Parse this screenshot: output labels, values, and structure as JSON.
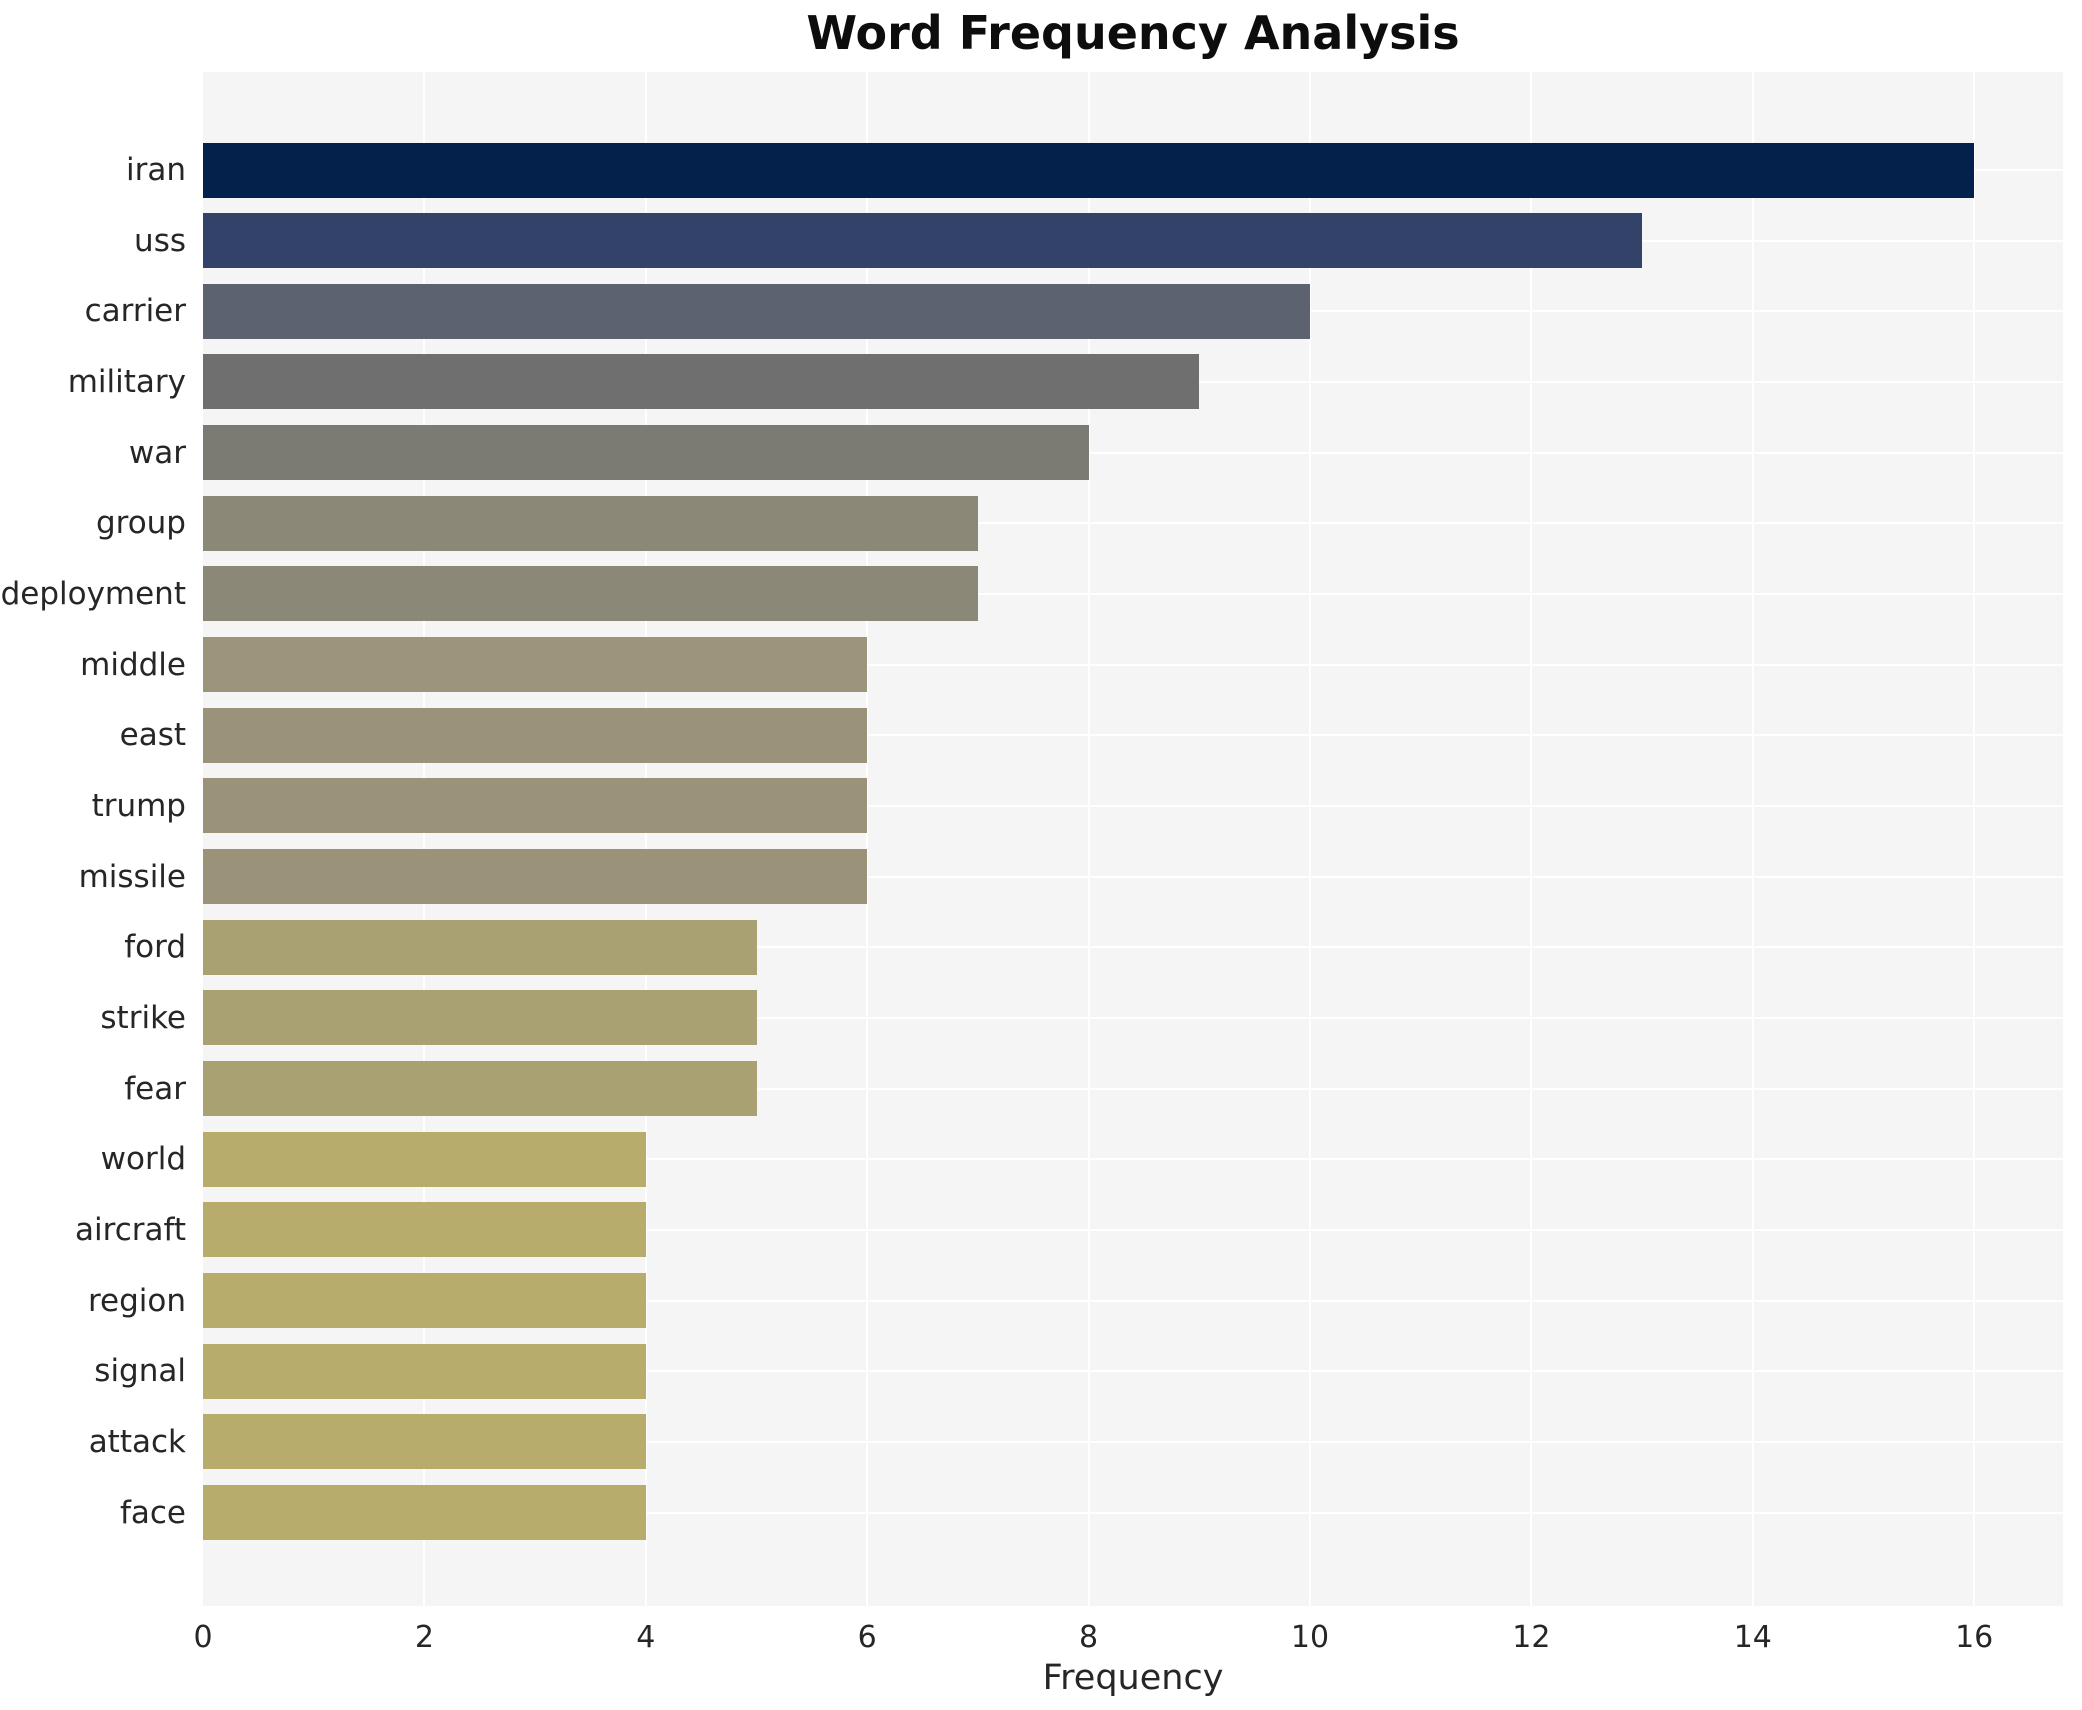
{
  "chart_data": {
    "type": "bar",
    "orientation": "horizontal",
    "title": "Word Frequency Analysis",
    "xlabel": "Frequency",
    "ylabel": "",
    "categories": [
      "iran",
      "uss",
      "carrier",
      "military",
      "war",
      "group",
      "deployment",
      "middle",
      "east",
      "trump",
      "missile",
      "ford",
      "strike",
      "fear",
      "world",
      "aircraft",
      "region",
      "signal",
      "attack",
      "face"
    ],
    "values": [
      16,
      13,
      10,
      9,
      8,
      7,
      7,
      6,
      6,
      6,
      6,
      5,
      5,
      5,
      4,
      4,
      4,
      4,
      4,
      4
    ],
    "xlim": [
      0,
      16
    ],
    "xticks": [
      0,
      2,
      4,
      6,
      8,
      10,
      12,
      14,
      16
    ],
    "grid": true,
    "legend": false,
    "bar_colors": [
      "#04214c",
      "#334269",
      "#5d6270",
      "#6e6f6e",
      "#7c7b73",
      "#8b8877",
      "#8b8877",
      "#9c947b",
      "#9a9279",
      "#9a9279",
      "#9a9279",
      "#aaa173",
      "#aaa173",
      "#aaa173",
      "#b7ac6b",
      "#b7ac6b",
      "#b7ac6b",
      "#b7ac6b",
      "#b7ac6b",
      "#b7ac6b"
    ],
    "colors": {
      "figure_bg": "#ffffff",
      "plot_bg": "#f5f5f6",
      "gridline": "#ffffff",
      "title_text": "#0d0d0d",
      "tick_text": "#262626"
    }
  }
}
